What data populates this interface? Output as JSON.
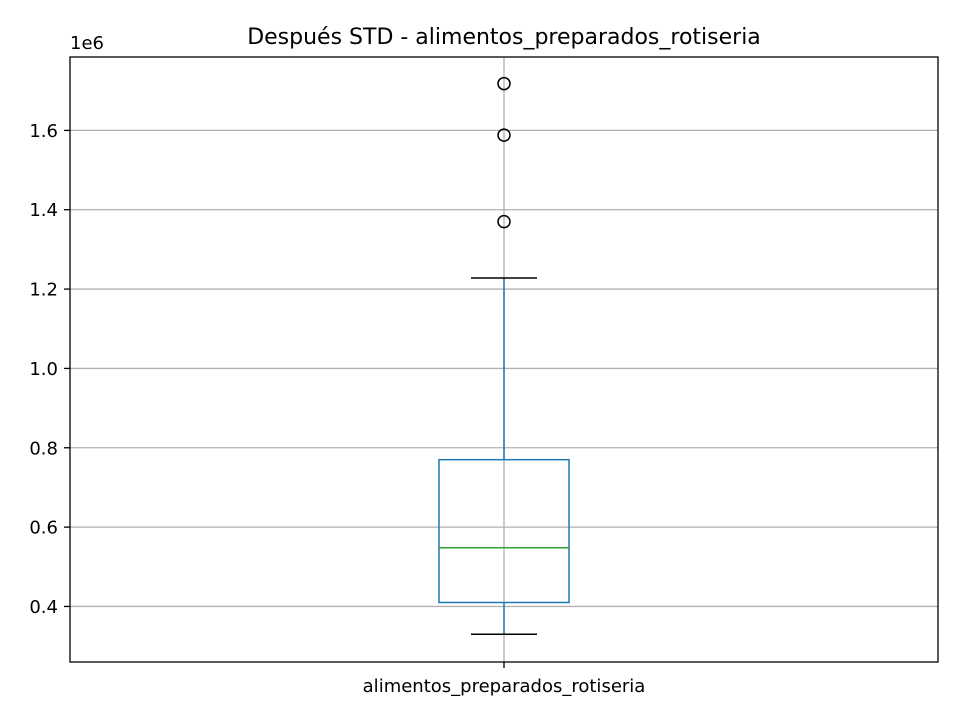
{
  "chart_data": {
    "type": "boxplot",
    "title": "Después STD - alimentos_preparados_rotiseria",
    "xlabel": "",
    "ylabel": "",
    "offset_label": "1e6",
    "categories": [
      "alimentos_preparados_rotiseria"
    ],
    "scale": 1000000,
    "ylim": [
      0.26,
      1.785
    ],
    "yticks": [
      0.4,
      0.6,
      0.8,
      1.0,
      1.2,
      1.4,
      1.6
    ],
    "ytick_labels": [
      "0.4",
      "0.6",
      "0.8",
      "1.0",
      "1.2",
      "1.4",
      "1.6"
    ],
    "grid": true,
    "series": [
      {
        "whisker_low": 0.33,
        "q1": 0.41,
        "median": 0.548,
        "q3": 0.77,
        "whisker_high": 1.228,
        "outliers": [
          1.37,
          1.588,
          1.718
        ]
      }
    ],
    "colors": {
      "box": "#1f77b4",
      "median": "#2ca02c",
      "whisker_cap": "#000000",
      "flier": "#000000",
      "grid": "#b0b0b0",
      "frame": "#000000"
    }
  }
}
